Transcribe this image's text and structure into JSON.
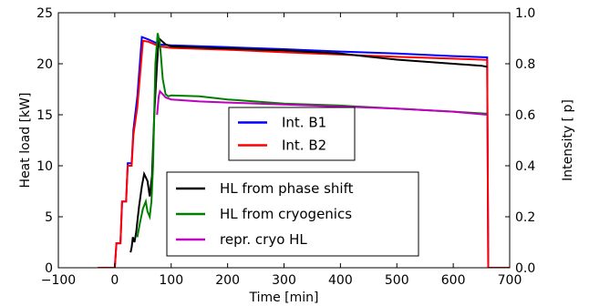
{
  "chart_data": {
    "type": "line",
    "xlabel": "Time [min]",
    "ylabel_left": "Heat load [kW]",
    "ylabel_right": "Intensity [        p]",
    "xlim": [
      -100,
      700
    ],
    "ylim_left": [
      0,
      25
    ],
    "ylim_right": [
      0,
      1.0
    ],
    "xticks": [
      -100,
      0,
      100,
      200,
      300,
      400,
      500,
      600,
      700
    ],
    "xtick_labels": [
      "−100",
      "0",
      "100",
      "200",
      "300",
      "400",
      "500",
      "600",
      "700"
    ],
    "yticks_left": [
      0,
      5,
      10,
      15,
      20,
      25
    ],
    "yticks_right": [
      0,
      0.2,
      0.4,
      0.6,
      0.8,
      1.0
    ],
    "ytick_labels_right": [
      "0.0",
      "0.2",
      "0.4",
      "0.6",
      "0.8",
      "1.0"
    ],
    "grid": false,
    "intensity_series": [
      {
        "name": "Int. B1",
        "color": "#0000ff",
        "axis": "right",
        "x": [
          -30,
          0,
          3,
          10,
          13,
          20,
          23,
          30,
          33,
          40,
          48,
          60,
          80,
          100,
          200,
          300,
          400,
          500,
          600,
          660,
          662,
          700
        ],
        "y": [
          0,
          0,
          0.096,
          0.096,
          0.26,
          0.26,
          0.41,
          0.41,
          0.54,
          0.67,
          0.905,
          0.895,
          0.875,
          0.872,
          0.865,
          0.857,
          0.848,
          0.84,
          0.83,
          0.825,
          0,
          0
        ]
      },
      {
        "name": "Int. B2",
        "color": "#ff0000",
        "axis": "right",
        "x": [
          -30,
          0,
          3,
          10,
          13,
          20,
          23,
          30,
          33,
          40,
          50,
          60,
          80,
          100,
          200,
          300,
          400,
          500,
          600,
          660,
          662,
          700
        ],
        "y": [
          0,
          0,
          0.096,
          0.096,
          0.26,
          0.26,
          0.4,
          0.4,
          0.52,
          0.63,
          0.89,
          0.886,
          0.868,
          0.862,
          0.855,
          0.845,
          0.836,
          0.827,
          0.82,
          0.815,
          0,
          0
        ]
      }
    ],
    "heatload_series": [
      {
        "name": "HL from phase shift",
        "color": "#000000",
        "axis": "left",
        "x": [
          28,
          30,
          32,
          35,
          38,
          40,
          43,
          48,
          52,
          58,
          62,
          66,
          70,
          75,
          78,
          82,
          90,
          100,
          150,
          200,
          300,
          400,
          450,
          500,
          550,
          600,
          650,
          660
        ],
        "y": [
          1.5,
          2.0,
          3.0,
          2.5,
          3.5,
          4.5,
          6.0,
          8.0,
          9.2,
          8.5,
          7.0,
          9.0,
          15.0,
          20.0,
          22.5,
          22.3,
          21.9,
          21.7,
          21.6,
          21.5,
          21.3,
          21.0,
          20.7,
          20.4,
          20.2,
          20.0,
          19.8,
          19.7
        ]
      },
      {
        "name": "HL from cryogenics",
        "color": "#008000",
        "axis": "left",
        "x": [
          40,
          45,
          50,
          55,
          58,
          62,
          65,
          68,
          72,
          76,
          80,
          85,
          90,
          95,
          100,
          150,
          200,
          300,
          400,
          500,
          600,
          660
        ],
        "y": [
          3.0,
          4.5,
          5.8,
          6.5,
          5.5,
          5.0,
          6.5,
          10.0,
          20.0,
          23.0,
          22.0,
          18.5,
          17.0,
          16.8,
          16.9,
          16.8,
          16.5,
          16.1,
          15.9,
          15.6,
          15.3,
          15.1
        ]
      },
      {
        "name": "repr. cryo HL",
        "color": "#bf00bf",
        "axis": "left",
        "x": [
          75,
          78,
          80,
          85,
          90,
          100,
          150,
          200,
          300,
          400,
          500,
          600,
          660
        ],
        "y": [
          15.0,
          16.8,
          17.3,
          17.0,
          16.7,
          16.5,
          16.3,
          16.2,
          16.0,
          15.8,
          15.6,
          15.3,
          15.0
        ]
      }
    ]
  }
}
